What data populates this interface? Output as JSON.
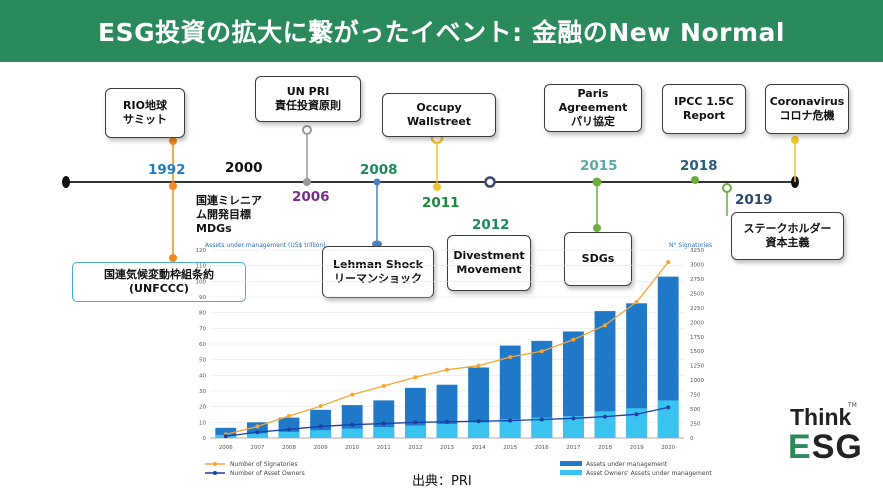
{
  "header": {
    "title": "ESG投資の拡大に繋がったイベント: 金融のNew Normal"
  },
  "events": {
    "rio": "RIO地球\nサミット",
    "unfccc": "国連気候変動枠組条約\n(UNFCCC)",
    "mdgs": "国連ミレニア\nム開発目標\nMDGs",
    "unpri": "UN PRI\n責任投資原則",
    "lehman": "Lehman Shock\nリーマンショック",
    "occupy": "Occupy Wallstreet",
    "divestment": "Divestment\nMovement",
    "paris": "Paris Agreement\nパリ協定",
    "sdgs": "SDGs",
    "ipcc": "IPCC 1.5C\nReport",
    "stakeholder": "ステークホルダー\n資本主義",
    "corona": "Coronavirus\nコロナ危機"
  },
  "years": {
    "y1992": "1992",
    "y2000": "2000",
    "y2006": "2006",
    "y2008": "2008",
    "y2011": "2011",
    "y2012": "2012",
    "y2015": "2015",
    "y2018": "2018",
    "y2019": "2019"
  },
  "colors": {
    "header": "#2a8a5c",
    "timeline": "#333333",
    "rio": "#f28c1e",
    "unpri": "#999999",
    "lehman": "#4a7fc1",
    "occupy": "#f2c42c",
    "divestment": "#3a4a6a",
    "green": "#6cae3e",
    "y1992": "#1a7fc1",
    "y2006": "#7a2d8f",
    "y2008": "#1a8a5a",
    "y2011": "#1a8a3a",
    "y2012": "#1a8a5a",
    "y2015": "#5aa9a9",
    "y2018": "#2a5a7a",
    "y2019": "#2a4a6a",
    "bar_total": "#1f78c8",
    "bar_owners": "#3bc3f0",
    "line_signatories": "#f7a531",
    "line_owners": "#1a3fa6"
  },
  "chart_data": {
    "type": "bar",
    "y_left_label": "Assets under management (US$ trillion)",
    "y_right_label": "N° Signatories",
    "categories": [
      "2006",
      "2007",
      "2008",
      "2009",
      "2010",
      "2011",
      "2012",
      "2013",
      "2014",
      "2015",
      "2016",
      "2017",
      "2018",
      "2019",
      "2020"
    ],
    "y_left_ticks": [
      "0",
      "10",
      "20",
      "30",
      "40",
      "50",
      "60",
      "70",
      "80",
      "90",
      "100",
      "110",
      "120"
    ],
    "y_right_ticks": [
      "0",
      "250",
      "500",
      "750",
      "1000",
      "1250",
      "1500",
      "1750",
      "2000",
      "2250",
      "2500",
      "2750",
      "3000",
      "3250"
    ],
    "ylim_left": [
      0,
      120
    ],
    "ylim_right": [
      0,
      3250
    ],
    "series": [
      {
        "name": "Assets under management",
        "values": [
          6.5,
          10,
          13,
          18,
          21,
          24,
          32,
          34,
          45,
          59,
          62,
          68,
          81,
          86,
          103
        ]
      },
      {
        "name": "Asset Owners' Assets under management",
        "values": [
          2,
          3,
          4,
          5,
          6,
          7,
          8,
          9,
          10,
          12,
          13,
          14,
          17,
          19,
          24
        ]
      },
      {
        "name": "Number of Signatories",
        "values": [
          63,
          200,
          380,
          550,
          750,
          900,
          1050,
          1180,
          1250,
          1400,
          1500,
          1700,
          1950,
          2350,
          3040
        ]
      },
      {
        "name": "Number of Asset Owners",
        "values": [
          30,
          100,
          150,
          200,
          230,
          250,
          270,
          280,
          290,
          300,
          320,
          340,
          370,
          410,
          530
        ]
      }
    ],
    "legend": [
      "Number of Signatories",
      "Number of Asset Owners",
      "Assets under management",
      "Asset Owners' Assets under management"
    ]
  },
  "source": {
    "label": "出典：PRI"
  },
  "logo": {
    "think": "Think",
    "esg_e": "E",
    "esg_rest": "SG",
    "tm": "TM"
  }
}
